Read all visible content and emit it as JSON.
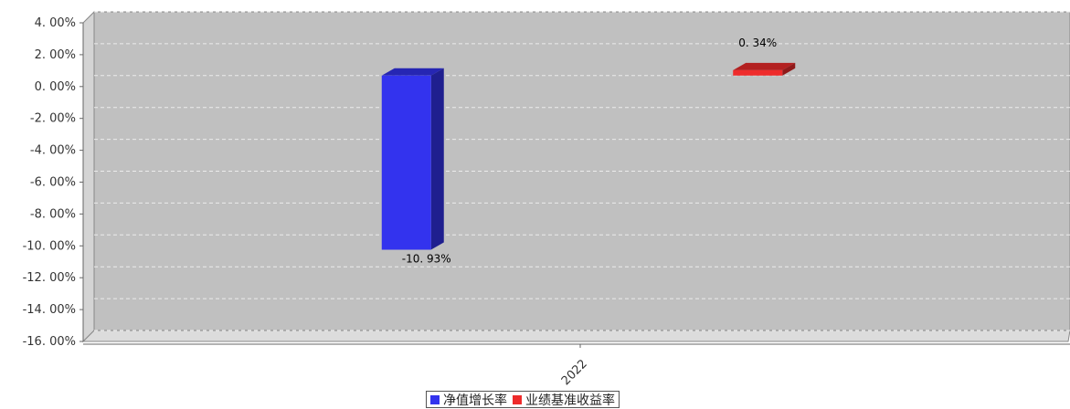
{
  "chart_data": {
    "type": "bar",
    "categories": [
      "2022"
    ],
    "series": [
      {
        "name": "净值增长率",
        "values": [
          -10.93
        ],
        "label": "-10.93%",
        "color": "#3333ee"
      },
      {
        "name": "业绩基准收益率",
        "values": [
          0.34
        ],
        "label": "0.34%",
        "color": "#ee2b2b"
      }
    ],
    "ylim": [
      -16,
      4
    ],
    "yticks": [
      4,
      2,
      0,
      -2,
      -4,
      -6,
      -8,
      -10,
      -12,
      -14,
      -16
    ],
    "ytick_labels": [
      "4. 00%",
      "2. 00%",
      "0. 00%",
      "-2. 00%",
      "-4. 00%",
      "-6. 00%",
      "-8. 00%",
      "-10. 00%",
      "-12. 00%",
      "-14. 00%",
      "-16. 00%"
    ],
    "data_labels": [
      "-10. 93%",
      "0. 34%"
    ],
    "grid": true,
    "legend_position": "bottom-center",
    "plot_background": "#c0c0c0",
    "title": "",
    "xlabel": "",
    "ylabel": ""
  }
}
